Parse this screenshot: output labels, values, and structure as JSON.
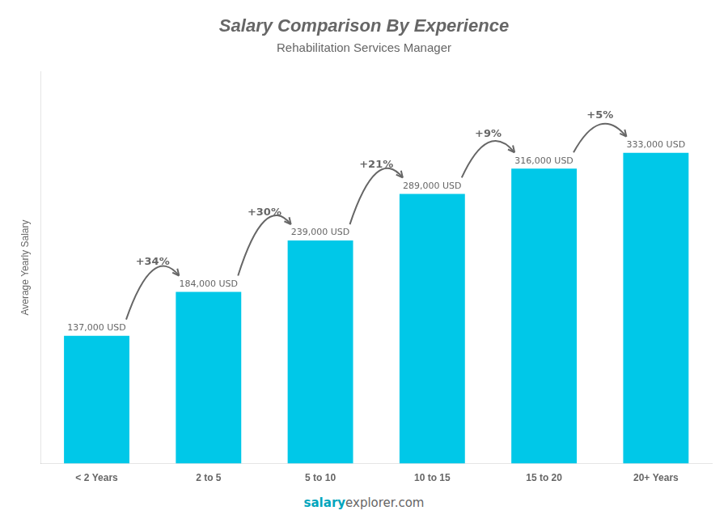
{
  "chart_data": {
    "type": "bar",
    "title": "Salary Comparison By Experience",
    "subtitle": "Rehabilitation Services Manager",
    "ylabel": "Average Yearly Salary",
    "categories": [
      "< 2 Years",
      "2 to 5",
      "5 to 10",
      "10 to 15",
      "15 to 20",
      "20+ Years"
    ],
    "values": [
      137000,
      184000,
      239000,
      289000,
      316000,
      333000
    ],
    "value_labels": [
      "137,000 USD",
      "184,000 USD",
      "239,000 USD",
      "289,000 USD",
      "316,000 USD",
      "333,000 USD"
    ],
    "data_labels": true,
    "color": "#00c8e8",
    "ylim": [
      0,
      420000
    ],
    "tick_labels": "x",
    "grid": false,
    "annotations": [
      "+34%",
      "+30%",
      "+21%",
      "+9%",
      "+5%"
    ],
    "footer": [
      "salary",
      "explorer.com"
    ]
  }
}
